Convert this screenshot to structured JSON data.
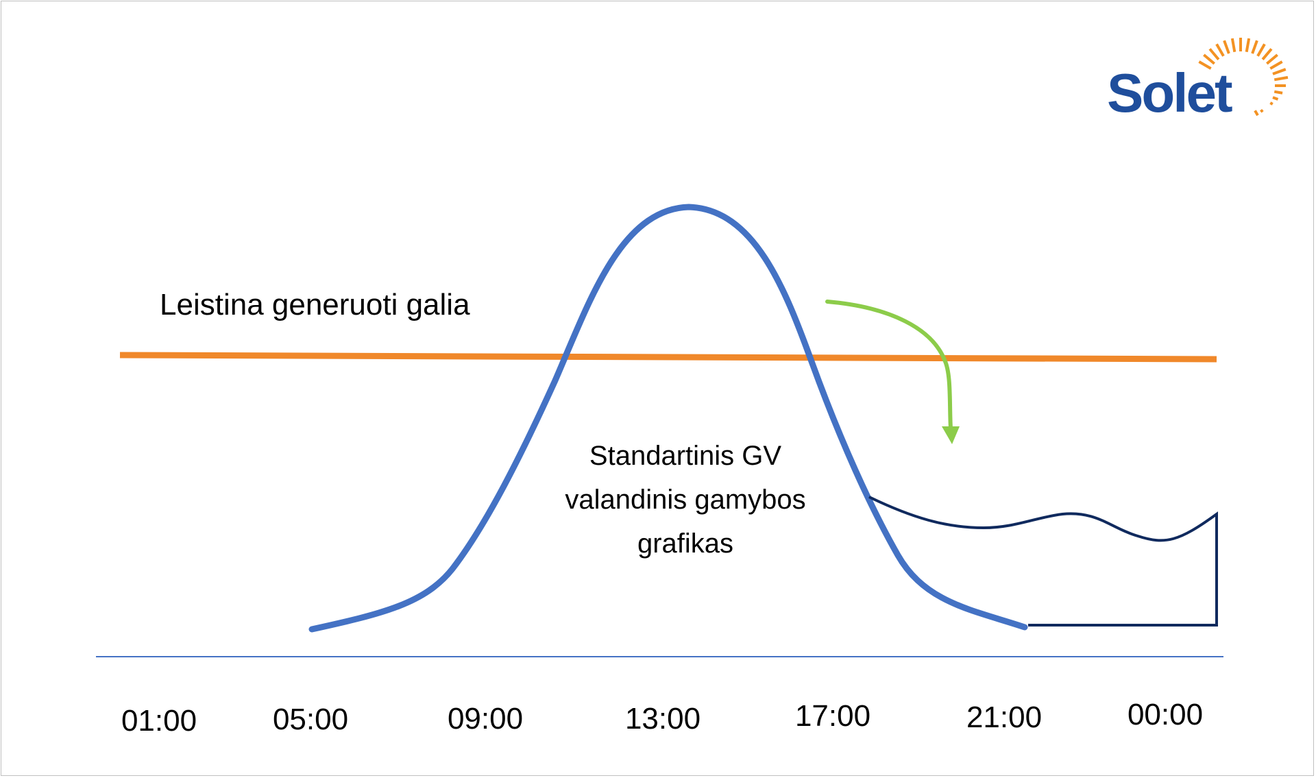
{
  "logo": {
    "text": "Solet",
    "colors": {
      "text": "#1f4e9c",
      "sun_rays": "#f39223"
    }
  },
  "labels": {
    "limit_line": "Leistina generuoti galia",
    "curve": "Standartinis GV valandinis gamybos grafikas"
  },
  "x_axis": {
    "ticks": [
      "01:00",
      "05:00",
      "09:00",
      "13:00",
      "17:00",
      "21:00",
      "00:00"
    ]
  },
  "colors": {
    "production_curve": "#4472c4",
    "limit_line": "#f0882a",
    "shift_arrow": "#8ccc4a",
    "stored_energy_curve": "#102a5e",
    "axis": "#4472c4"
  }
}
